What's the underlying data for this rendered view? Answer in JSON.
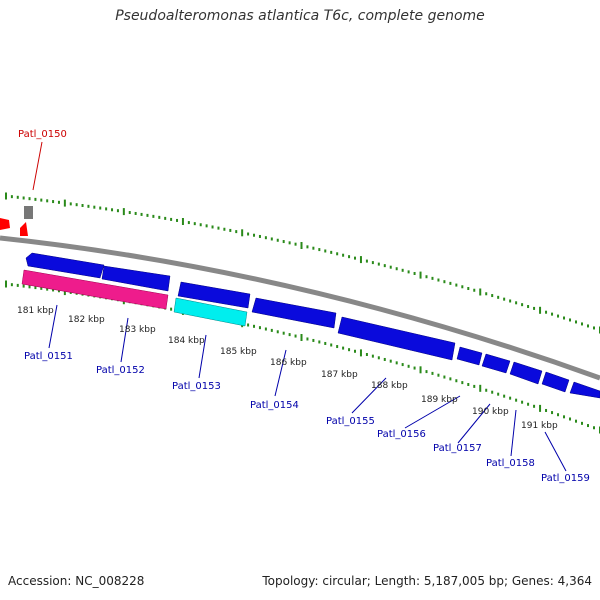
{
  "title": "Pseudoalteromonas atlantica T6c, complete genome",
  "accession": "Accession: NC_008228",
  "summary": "Topology: circular; Length: 5,187,005 bp; Genes: 4,364",
  "colors": {
    "backbone": "#888888",
    "forward_gene": "#0a0adc",
    "reverse_gene": "#ee1c8c",
    "reverse_gene_alt": "#00eeee",
    "rna_gene": "#777777",
    "outer_genes": "#ff0000",
    "tick_major": "#2a8a1a",
    "tick_minor": "#2a8a1a",
    "label_forward": "#0000aa",
    "label_highlight": "#cc0000"
  },
  "scale_labels": [
    "181 kbp",
    "182 kbp",
    "183 kbp",
    "184 kbp",
    "185 kbp",
    "186 kbp",
    "187 kbp",
    "188 kbp",
    "189 kbp",
    "190 kbp",
    "191 kbp"
  ],
  "gene_labels": [
    {
      "text": "Patl_0150",
      "color": "#cc0000"
    },
    {
      "text": "Patl_0151",
      "color": "#0000aa"
    },
    {
      "text": "Patl_0152",
      "color": "#0000aa"
    },
    {
      "text": "Patl_0153",
      "color": "#0000aa"
    },
    {
      "text": "Patl_0154",
      "color": "#0000aa"
    },
    {
      "text": "Patl_0155",
      "color": "#0000aa"
    },
    {
      "text": "Patl_0156",
      "color": "#0000aa"
    },
    {
      "text": "Patl_0157",
      "color": "#0000aa"
    },
    {
      "text": "Patl_0158",
      "color": "#0000aa"
    },
    {
      "text": "Patl_0159",
      "color": "#0000aa"
    }
  ]
}
